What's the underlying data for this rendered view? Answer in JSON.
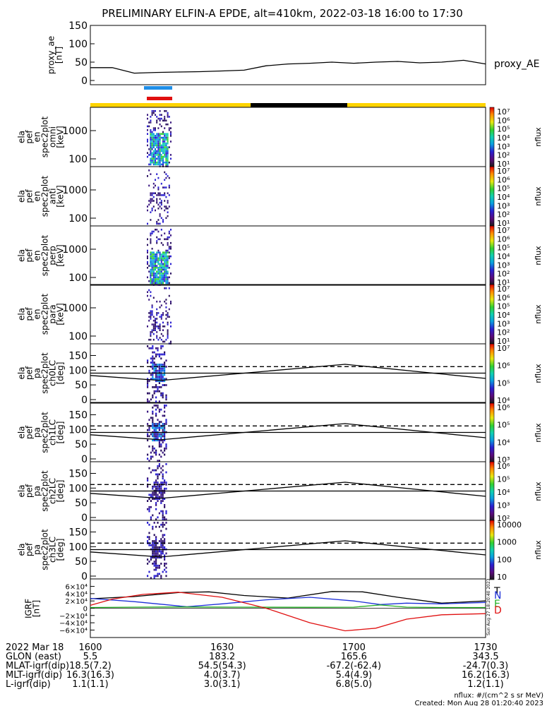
{
  "title": "PRELIMINARY ELFIN-A EPDE, alt=410km, 2022-03-18 16:00 to 17:30",
  "colors": {
    "sci_zone_bar": "#ffd400",
    "eclipse_bar": "#000000",
    "blue_marker": "#1f8fe8",
    "red_marker": "#e01010",
    "N_line": "#1c2fd8",
    "E_line": "#22b022",
    "D_line": "#e01010",
    "H_line": "#000000"
  },
  "panels": {
    "ae": {
      "ylabel": [
        "proxy_ae",
        "[nT]"
      ],
      "ticks": [
        "150",
        "100",
        "50",
        "0"
      ],
      "legend": "proxy_AE"
    },
    "en": [
      {
        "ylabel": [
          "ela",
          "pef",
          "en",
          "spec2plot",
          "omni",
          "[keV]"
        ],
        "ticks": [
          "1000",
          "100"
        ]
      },
      {
        "ylabel": [
          "ela",
          "pef",
          "en",
          "spec2plot",
          "anti",
          "[keV]"
        ],
        "ticks": [
          "1000",
          "100"
        ]
      },
      {
        "ylabel": [
          "ela",
          "pef",
          "en",
          "spec2plot",
          "perp",
          "[keV]"
        ],
        "ticks": [
          "1000",
          "100"
        ]
      },
      {
        "ylabel": [
          "ela",
          "pef",
          "en",
          "spec2plot",
          "para",
          "[keV]"
        ],
        "ticks": [
          "1000",
          "100"
        ]
      }
    ],
    "pa": [
      {
        "ylabel": [
          "ela",
          "pef",
          "pa",
          "spec2plot",
          "ch0LC",
          "[deg]"
        ],
        "ticks": [
          "150",
          "100",
          "50",
          "0"
        ]
      },
      {
        "ylabel": [
          "ela",
          "pef",
          "pa",
          "spec2plot",
          "ch1LC",
          "[deg]"
        ],
        "ticks": [
          "150",
          "100",
          "50",
          "0"
        ]
      },
      {
        "ylabel": [
          "ela",
          "pef",
          "pa",
          "spec2plot",
          "ch2LC",
          "[deg]"
        ],
        "ticks": [
          "150",
          "100",
          "50",
          "0"
        ]
      },
      {
        "ylabel": [
          "ela",
          "pef",
          "pa",
          "spec2plot",
          "ch3LC",
          "[deg]"
        ],
        "ticks": [
          "150",
          "100",
          "50",
          "0"
        ]
      }
    ],
    "igrf": {
      "ylabel": [
        "IGRF",
        "[nT]"
      ],
      "ticks": [
        "6×10⁴",
        "4×10⁴",
        "2×10⁴",
        "0",
        "−2×10⁴",
        "−4×10⁴",
        "−6×10⁴"
      ],
      "legend": [
        "T",
        "N",
        "E",
        "D"
      ],
      "stamp": "Sun Aug 27 18:20:40 2023"
    }
  },
  "colorbars": [
    {
      "label": "nflux",
      "ticks": [
        "10⁷",
        "10⁶",
        "10⁵",
        "10⁴",
        "10³",
        "10²",
        "10¹"
      ]
    },
    {
      "label": "nflux",
      "ticks": [
        "10⁷",
        "10⁶",
        "10⁵",
        "10⁴",
        "10³",
        "10²",
        "10¹"
      ]
    },
    {
      "label": "nflux",
      "ticks": [
        "10⁷",
        "10⁶",
        "10⁵",
        "10⁴",
        "10³",
        "10²",
        "10¹"
      ]
    },
    {
      "label": "nflux",
      "ticks": [
        "10⁷",
        "10⁶",
        "10⁵",
        "10⁴",
        "10³",
        "10²",
        "10¹"
      ]
    },
    {
      "label": "nflux",
      "ticks": [
        "10⁷",
        "10⁶",
        "10⁵",
        "10⁴"
      ]
    },
    {
      "label": "nflux",
      "ticks": [
        "10⁶",
        "10⁵",
        "10⁴",
        "10³"
      ]
    },
    {
      "label": "nflux",
      "ticks": [
        "10⁶",
        "10⁵",
        "10⁴",
        "10³",
        "10²"
      ]
    },
    {
      "label": "nflux",
      "ticks": [
        "10000",
        "1000",
        "100",
        "10"
      ]
    }
  ],
  "footer": {
    "row_labels": [
      "2022 Mar 18",
      "GLON (east)",
      "MLAT-igrf(dip)",
      "MLT-igrf(dip)",
      "L-igrf(dip)"
    ],
    "columns": [
      [
        "1600",
        "5.5",
        "18.5(7.2)",
        "16.3(16.3)",
        "1.1(1.1)"
      ],
      [
        "1630",
        "183.2",
        "54.5(54.3)",
        "4.0(3.7)",
        "3.0(3.1)"
      ],
      [
        "1700",
        "165.6",
        "-67.2(-62.4)",
        "5.4(4.9)",
        "6.8(5.0)"
      ],
      [
        "1730",
        "343.5",
        "-24.7(0.3)",
        "16.2(16.3)",
        "1.2(1.1)"
      ]
    ],
    "units": "nflux: #/(cm^2 s sr MeV)",
    "created": "Created: Mon Aug 28 01:20:40 2023"
  },
  "chart_data": {
    "type": "line",
    "x_label_ticks": [
      "1600",
      "1630",
      "1700",
      "1730"
    ],
    "x_minutes": [
      0,
      90
    ],
    "proxy_ae": {
      "ylim": [
        0,
        150
      ],
      "x": [
        0,
        5,
        10,
        15,
        20,
        25,
        30,
        35,
        40,
        45,
        50,
        55,
        60,
        65,
        70,
        75,
        80,
        85,
        90
      ],
      "y": [
        35,
        35,
        20,
        22,
        23,
        24,
        26,
        28,
        40,
        45,
        47,
        50,
        47,
        50,
        52,
        48,
        50,
        55,
        45
      ]
    },
    "pa_reference_lines": {
      "x": [
        0,
        16,
        58,
        90
      ],
      "solid": [
        90,
        90,
        90,
        90
      ],
      "dashed": [
        112,
        112,
        112,
        112
      ],
      "lc": [
        82,
        65,
        120,
        72
      ]
    },
    "igrf": {
      "ylim": [
        -65000,
        65000
      ],
      "series": [
        {
          "name": "T",
          "x": [
            0,
            10,
            20,
            27,
            35,
            45,
            55,
            62,
            70,
            80,
            90
          ],
          "y": [
            26000,
            32000,
            43000,
            45000,
            35000,
            28000,
            46000,
            45000,
            30000,
            14000,
            20000
          ]
        },
        {
          "name": "N",
          "x": [
            0,
            10,
            22,
            30,
            40,
            50,
            60,
            66,
            72,
            80,
            90
          ],
          "y": [
            27000,
            18000,
            4000,
            12000,
            23000,
            30000,
            20000,
            10000,
            14000,
            12000,
            16000
          ]
        },
        {
          "name": "E",
          "x": [
            0,
            10,
            20,
            35,
            50,
            60,
            66,
            72,
            80,
            90
          ],
          "y": [
            2000,
            3000,
            3500,
            3000,
            2500,
            3000,
            9000,
            3000,
            2000,
            2000
          ]
        },
        {
          "name": "D",
          "x": [
            0,
            5,
            12,
            20,
            30,
            40,
            50,
            58,
            65,
            72,
            80,
            90
          ],
          "y": [
            8000,
            25000,
            38000,
            44000,
            30000,
            0,
            -40000,
            -62000,
            -55000,
            -30000,
            -18000,
            -15000
          ]
        }
      ]
    }
  }
}
